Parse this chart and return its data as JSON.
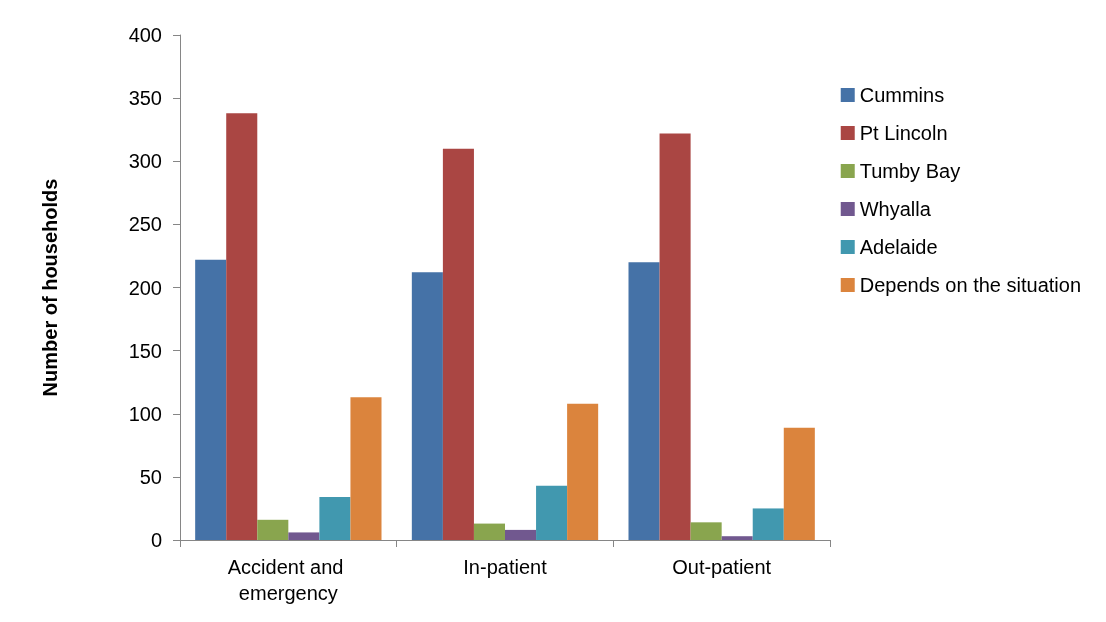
{
  "chart_data": {
    "type": "bar",
    "ylabel": "Number of households",
    "categories": [
      "Accident and emergency",
      "In-patient",
      "Out-patient"
    ],
    "series": [
      {
        "name": "Cummins",
        "color": "#4572a7",
        "values": [
          222,
          212,
          220
        ]
      },
      {
        "name": "Pt Lincoln",
        "color": "#aa4643",
        "values": [
          338,
          310,
          322
        ]
      },
      {
        "name": "Tumby Bay",
        "color": "#89a54e",
        "values": [
          16,
          13,
          14
        ]
      },
      {
        "name": "Whyalla",
        "color": "#71588f",
        "values": [
          6,
          8,
          3
        ]
      },
      {
        "name": "Adelaide",
        "color": "#4198af",
        "values": [
          34,
          43,
          25
        ]
      },
      {
        "name": "Depends on the situation",
        "color": "#db843d",
        "values": [
          113,
          108,
          89
        ]
      }
    ],
    "ylim": [
      0,
      400
    ],
    "yticks": [
      0,
      50,
      100,
      150,
      200,
      250,
      300,
      350,
      400
    ],
    "grid": false,
    "legend": "right"
  }
}
